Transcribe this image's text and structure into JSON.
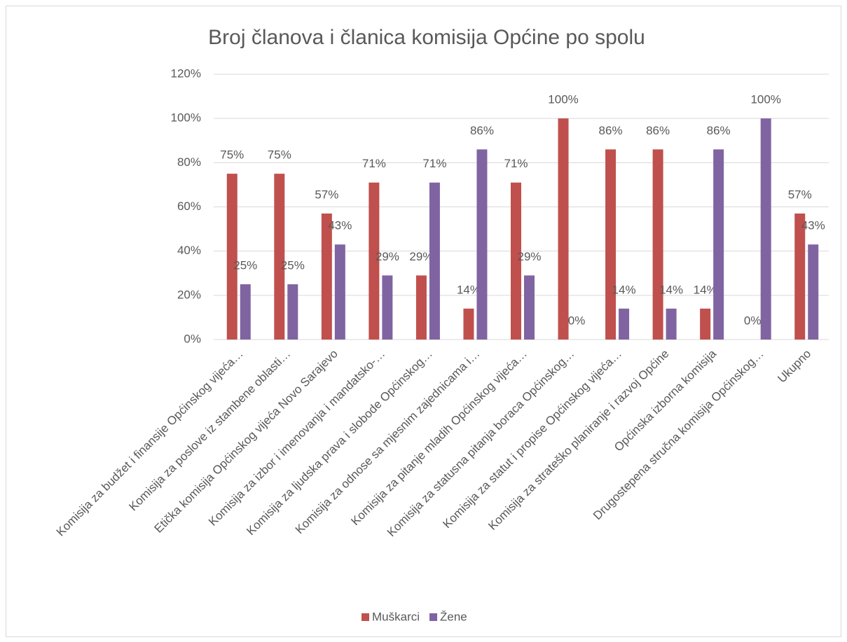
{
  "chart_data": {
    "type": "bar",
    "title": "Broj članova i članica komisija Općine po spolu",
    "categories": [
      "Komisija za budžet i finansije Općinskog vijeća…",
      "Komisija za poslove iz stambene oblasti…",
      "Etička komisija Općinskog vijeća Novo Sarajevo",
      "Komisija za izbor i imenovanja i mandatsko-…",
      "Komisija za ljudska prava i slobode Općinskog…",
      "Komisija za odnose sa mjesnim zajednicama i…",
      "Komisija za pitanje mladih Općinskog vijeća…",
      "Komisija za statusna pitanja boraca Općinskog…",
      "Komisija za statut i propise Općinskog vijeća…",
      "Komisija za strateško planiranje i razvoj Općine",
      "Općinska izborna komisija",
      "Drugostepena stručna komisija Općinskog…",
      "Ukupno"
    ],
    "series": [
      {
        "name": "Muškarci",
        "color": "#c0504d",
        "values": [
          75,
          75,
          57,
          71,
          29,
          14,
          71,
          100,
          86,
          86,
          14,
          0,
          57
        ],
        "value_labels": [
          "75%",
          "75%",
          "57%",
          "71%",
          "29%",
          "14%",
          "71%",
          "100%",
          "86%",
          "86%",
          "14%",
          "0%",
          "57%"
        ]
      },
      {
        "name": "Žene",
        "color": "#8064a2",
        "values": [
          25,
          25,
          43,
          29,
          71,
          86,
          29,
          0,
          14,
          14,
          86,
          100,
          43
        ],
        "value_labels": [
          "25%",
          "25%",
          "43%",
          "29%",
          "71%",
          "86%",
          "29%",
          "0%",
          "14%",
          "14%",
          "86%",
          "100%",
          "43%"
        ]
      }
    ],
    "ylim": [
      0,
      120
    ],
    "yticks": [
      {
        "value": 0,
        "label": "0%"
      },
      {
        "value": 20,
        "label": "20%"
      },
      {
        "value": 40,
        "label": "40%"
      },
      {
        "value": 60,
        "label": "60%"
      },
      {
        "value": 80,
        "label": "80%"
      },
      {
        "value": 100,
        "label": "100%"
      },
      {
        "value": 120,
        "label": "120%"
      }
    ],
    "grid": true,
    "legend": "bottom"
  }
}
